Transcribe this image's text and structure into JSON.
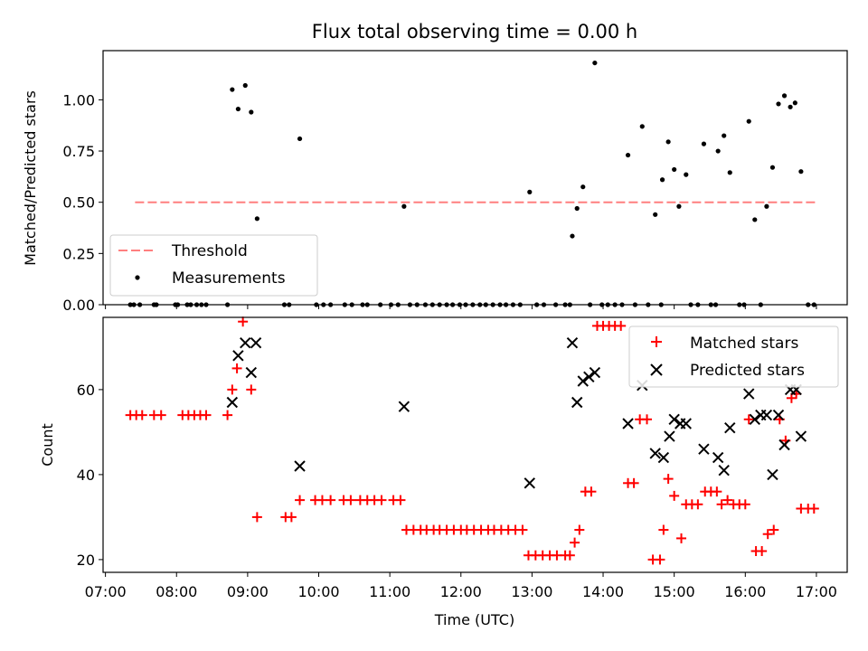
{
  "figure": {
    "title": "Flux total observing time = 0.00 h",
    "xlabel": "Time (UTC)"
  },
  "chart_data": [
    {
      "type": "scatter",
      "ylabel": "Matched/Predicted stars",
      "ylim": [
        0,
        1.24
      ],
      "yticks": [
        0.0,
        0.25,
        0.5,
        0.75,
        1.0
      ],
      "ytick_labels": [
        "0.00",
        "0.25",
        "0.50",
        "0.75",
        "1.00"
      ],
      "xlim": [
        "06:58",
        "17:26"
      ],
      "legend": {
        "placement": "lower-left"
      },
      "threshold": {
        "name": "Threshold",
        "value": 0.5,
        "x_start": "07:25",
        "x_end": "17:00",
        "color": "#ff7f7f",
        "style": "dashed"
      },
      "series": [
        {
          "name": "Measurements",
          "color": "#000000",
          "points": [
            [
              "07:21",
              0
            ],
            [
              "07:24",
              0
            ],
            [
              "07:29",
              0
            ],
            [
              "07:41",
              0
            ],
            [
              "07:43",
              0
            ],
            [
              "07:59",
              0
            ],
            [
              "08:01",
              0
            ],
            [
              "08:09",
              0
            ],
            [
              "08:12",
              0
            ],
            [
              "08:17",
              0
            ],
            [
              "08:21",
              0
            ],
            [
              "08:25",
              0
            ],
            [
              "08:43",
              0
            ],
            [
              "08:47",
              1.05
            ],
            [
              "08:52",
              0.955
            ],
            [
              "08:58",
              1.07
            ],
            [
              "09:03",
              0.94
            ],
            [
              "09:08",
              0.42
            ],
            [
              "09:31",
              0
            ],
            [
              "09:35",
              0
            ],
            [
              "09:44",
              0.81
            ],
            [
              "09:58",
              0
            ],
            [
              "10:04",
              0
            ],
            [
              "10:10",
              0
            ],
            [
              "10:22",
              0
            ],
            [
              "10:28",
              0
            ],
            [
              "10:37",
              0
            ],
            [
              "10:41",
              0
            ],
            [
              "10:52",
              0
            ],
            [
              "11:01",
              0
            ],
            [
              "11:07",
              0
            ],
            [
              "11:12",
              0.48
            ],
            [
              "11:17",
              0
            ],
            [
              "11:23",
              0
            ],
            [
              "11:30",
              0
            ],
            [
              "11:36",
              0
            ],
            [
              "11:42",
              0
            ],
            [
              "11:48",
              0
            ],
            [
              "11:53",
              0
            ],
            [
              "11:59",
              0
            ],
            [
              "12:04",
              0
            ],
            [
              "12:10",
              0
            ],
            [
              "12:16",
              0
            ],
            [
              "12:21",
              0
            ],
            [
              "12:27",
              0
            ],
            [
              "12:33",
              0
            ],
            [
              "12:38",
              0
            ],
            [
              "12:44",
              0
            ],
            [
              "12:50",
              0
            ],
            [
              "12:58",
              0.55
            ],
            [
              "13:04",
              0
            ],
            [
              "13:10",
              0
            ],
            [
              "13:20",
              0
            ],
            [
              "13:28",
              0
            ],
            [
              "13:32",
              0
            ],
            [
              "13:34",
              0.335
            ],
            [
              "13:38",
              0.47
            ],
            [
              "13:43",
              0.575
            ],
            [
              "13:49",
              0
            ],
            [
              "13:53",
              1.18
            ],
            [
              "13:59",
              0
            ],
            [
              "14:04",
              0
            ],
            [
              "14:10",
              0
            ],
            [
              "14:16",
              0
            ],
            [
              "14:21",
              0.73
            ],
            [
              "14:27",
              0
            ],
            [
              "14:33",
              0.87
            ],
            [
              "14:38",
              0
            ],
            [
              "14:44",
              0.44
            ],
            [
              "14:49",
              0
            ],
            [
              "14:50",
              0.61
            ],
            [
              "14:55",
              0.795
            ],
            [
              "15:00",
              0.66
            ],
            [
              "15:04",
              0.48
            ],
            [
              "15:10",
              0.635
            ],
            [
              "15:14",
              0
            ],
            [
              "15:20",
              0
            ],
            [
              "15:25",
              0.785
            ],
            [
              "15:31",
              0
            ],
            [
              "15:35",
              0
            ],
            [
              "15:37",
              0.75
            ],
            [
              "15:42",
              0.825
            ],
            [
              "15:47",
              0.645
            ],
            [
              "15:55",
              0
            ],
            [
              "15:59",
              0
            ],
            [
              "16:03",
              0.895
            ],
            [
              "16:08",
              0.415
            ],
            [
              "16:13",
              0
            ],
            [
              "16:18",
              0.48
            ],
            [
              "16:23",
              0.67
            ],
            [
              "16:28",
              0.98
            ],
            [
              "16:33",
              1.02
            ],
            [
              "16:38",
              0.965
            ],
            [
              "16:42",
              0.985
            ],
            [
              "16:47",
              0.65
            ],
            [
              "16:53",
              0
            ],
            [
              "16:58",
              0
            ]
          ]
        }
      ]
    },
    {
      "type": "scatter",
      "ylabel": "Count",
      "ylim": [
        17,
        77
      ],
      "yticks": [
        20,
        40,
        60
      ],
      "ytick_labels": [
        "20",
        "40",
        "60"
      ],
      "xlim": [
        "06:58",
        "17:26"
      ],
      "xticks": [
        "07:00",
        "08:00",
        "09:00",
        "10:00",
        "11:00",
        "12:00",
        "13:00",
        "14:00",
        "15:00",
        "16:00",
        "17:00"
      ],
      "xtick_labels": [
        "07:00",
        "08:00",
        "09:00",
        "10:00",
        "11:00",
        "12:00",
        "13:00",
        "14:00",
        "15:00",
        "16:00",
        "17:00"
      ],
      "legend": {
        "placement": "top-right"
      },
      "series": [
        {
          "name": "Matched stars",
          "color": "#ff0000",
          "marker": "plus",
          "points": [
            [
              "07:21",
              54
            ],
            [
              "07:26",
              54
            ],
            [
              "07:31",
              54
            ],
            [
              "07:41",
              54
            ],
            [
              "07:47",
              54
            ],
            [
              "08:05",
              54
            ],
            [
              "08:10",
              54
            ],
            [
              "08:15",
              54
            ],
            [
              "08:20",
              54
            ],
            [
              "08:25",
              54
            ],
            [
              "08:43",
              54
            ],
            [
              "08:47",
              60
            ],
            [
              "08:51",
              65
            ],
            [
              "08:56",
              76
            ],
            [
              "09:03",
              60
            ],
            [
              "09:08",
              30
            ],
            [
              "09:32",
              30
            ],
            [
              "09:37",
              30
            ],
            [
              "09:44",
              34
            ],
            [
              "09:57",
              34
            ],
            [
              "10:03",
              34
            ],
            [
              "10:10",
              34
            ],
            [
              "10:21",
              34
            ],
            [
              "10:27",
              34
            ],
            [
              "10:35",
              34
            ],
            [
              "10:41",
              34
            ],
            [
              "10:47",
              34
            ],
            [
              "10:53",
              34
            ],
            [
              "11:03",
              34
            ],
            [
              "11:09",
              34
            ],
            [
              "11:14",
              27
            ],
            [
              "11:20",
              27
            ],
            [
              "11:26",
              27
            ],
            [
              "11:31",
              27
            ],
            [
              "11:37",
              27
            ],
            [
              "11:42",
              27
            ],
            [
              "11:48",
              27
            ],
            [
              "11:54",
              27
            ],
            [
              "12:00",
              27
            ],
            [
              "12:05",
              27
            ],
            [
              "12:11",
              27
            ],
            [
              "12:17",
              27
            ],
            [
              "12:23",
              27
            ],
            [
              "12:28",
              27
            ],
            [
              "12:34",
              27
            ],
            [
              "12:40",
              27
            ],
            [
              "12:46",
              27
            ],
            [
              "12:52",
              27
            ],
            [
              "12:57",
              21
            ],
            [
              "13:03",
              21
            ],
            [
              "13:09",
              21
            ],
            [
              "13:15",
              21
            ],
            [
              "13:21",
              21
            ],
            [
              "13:28",
              21
            ],
            [
              "13:32",
              21
            ],
            [
              "13:36",
              24
            ],
            [
              "13:40",
              27
            ],
            [
              "13:45",
              36
            ],
            [
              "13:50",
              36
            ],
            [
              "13:55",
              75
            ],
            [
              "14:00",
              75
            ],
            [
              "14:05",
              75
            ],
            [
              "14:10",
              75
            ],
            [
              "14:15",
              75
            ],
            [
              "14:21",
              38
            ],
            [
              "14:26",
              38
            ],
            [
              "14:31",
              53
            ],
            [
              "14:37",
              53
            ],
            [
              "14:42",
              20
            ],
            [
              "14:48",
              20
            ],
            [
              "14:51",
              27
            ],
            [
              "14:55",
              39
            ],
            [
              "15:00",
              35
            ],
            [
              "15:06",
              25
            ],
            [
              "15:10",
              33
            ],
            [
              "15:15",
              33
            ],
            [
              "15:20",
              33
            ],
            [
              "15:26",
              36
            ],
            [
              "15:31",
              36
            ],
            [
              "15:36",
              36
            ],
            [
              "15:40",
              33
            ],
            [
              "15:45",
              34
            ],
            [
              "15:50",
              33
            ],
            [
              "15:55",
              33
            ],
            [
              "16:00",
              33
            ],
            [
              "16:03",
              53
            ],
            [
              "16:09",
              22
            ],
            [
              "16:14",
              22
            ],
            [
              "16:19",
              26
            ],
            [
              "16:24",
              27
            ],
            [
              "16:29",
              53
            ],
            [
              "16:34",
              48
            ],
            [
              "16:39",
              58
            ],
            [
              "16:43",
              59
            ],
            [
              "16:47",
              32
            ],
            [
              "16:53",
              32
            ],
            [
              "16:58",
              32
            ]
          ]
        },
        {
          "name": "Predicted stars",
          "color": "#000000",
          "marker": "x",
          "points": [
            [
              "08:47",
              57
            ],
            [
              "08:52",
              68
            ],
            [
              "08:58",
              71
            ],
            [
              "09:03",
              64
            ],
            [
              "09:07",
              71
            ],
            [
              "09:44",
              42
            ],
            [
              "11:12",
              56
            ],
            [
              "12:58",
              38
            ],
            [
              "13:34",
              71
            ],
            [
              "13:38",
              57
            ],
            [
              "13:43",
              62
            ],
            [
              "13:48",
              63
            ],
            [
              "13:53",
              64
            ],
            [
              "14:21",
              52
            ],
            [
              "14:33",
              61
            ],
            [
              "14:44",
              45
            ],
            [
              "14:51",
              44
            ],
            [
              "14:56",
              49
            ],
            [
              "15:00",
              53
            ],
            [
              "15:05",
              52
            ],
            [
              "15:10",
              52
            ],
            [
              "15:25",
              46
            ],
            [
              "15:37",
              44
            ],
            [
              "15:42",
              41
            ],
            [
              "15:47",
              51
            ],
            [
              "16:03",
              59
            ],
            [
              "16:08",
              53
            ],
            [
              "16:13",
              54
            ],
            [
              "16:18",
              54
            ],
            [
              "16:23",
              40
            ],
            [
              "16:28",
              54
            ],
            [
              "16:33",
              47
            ],
            [
              "16:38",
              60
            ],
            [
              "16:43",
              60
            ],
            [
              "16:47",
              49
            ]
          ]
        }
      ]
    }
  ]
}
